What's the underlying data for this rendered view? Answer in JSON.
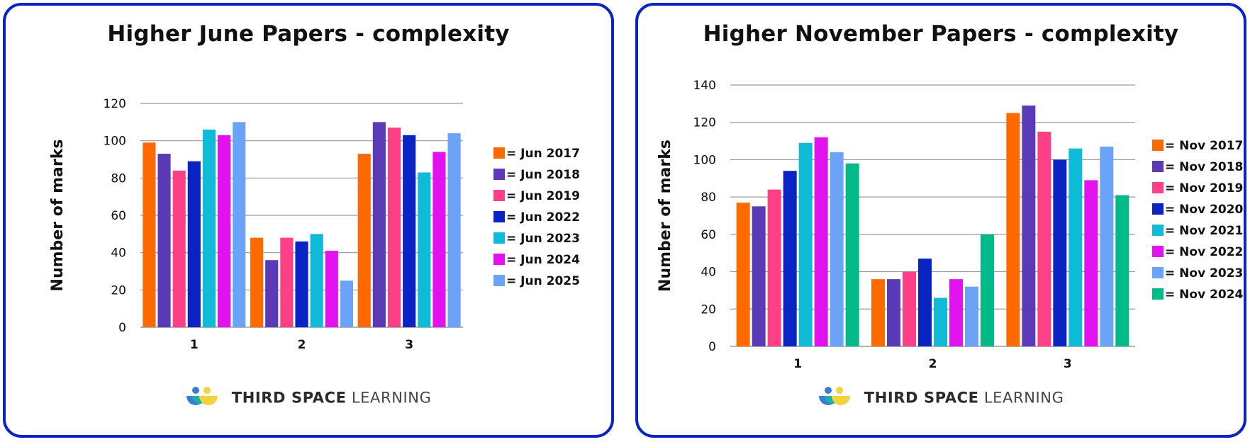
{
  "brand": {
    "bold": "THIRD SPACE",
    "light": "LEARNING"
  },
  "charts": [
    {
      "title": "Higher June Papers - complexity",
      "chart_data": {
        "type": "bar",
        "title": "Higher June Papers - complexity",
        "xlabel": "",
        "ylabel": "Number of marks",
        "ylim": [
          0,
          120
        ],
        "yticks": [
          0,
          20,
          40,
          60,
          80,
          100,
          120
        ],
        "grid": true,
        "legend": "right",
        "categories": [
          "1",
          "2",
          "3"
        ],
        "series": [
          {
            "name": "= Jun 2017",
            "color": "#ff6a00",
            "values": [
              99,
              48,
              93
            ]
          },
          {
            "name": "= Jun 2018",
            "color": "#5b3ab8",
            "values": [
              93,
              36,
              110
            ]
          },
          {
            "name": "= Jun 2019",
            "color": "#ff3f86",
            "values": [
              84,
              48,
              107
            ]
          },
          {
            "name": "= Jun 2022",
            "color": "#0a24c4",
            "values": [
              89,
              46,
              103
            ]
          },
          {
            "name": "= Jun 2023",
            "color": "#0fbbd6",
            "values": [
              106,
              50,
              83
            ]
          },
          {
            "name": "= Jun 2024",
            "color": "#e212ef",
            "values": [
              103,
              41,
              94
            ]
          },
          {
            "name": "= Jun 2025",
            "color": "#6aa3f7",
            "values": [
              110,
              25,
              104
            ]
          }
        ]
      }
    },
    {
      "title": "Higher November Papers - complexity",
      "chart_data": {
        "type": "bar",
        "title": "Higher November Papers - complexity",
        "xlabel": "",
        "ylabel": "Number of marks",
        "ylim": [
          0,
          140
        ],
        "yticks": [
          0,
          20,
          40,
          60,
          80,
          100,
          120,
          140
        ],
        "grid": true,
        "legend": "right",
        "categories": [
          "1",
          "2",
          "3"
        ],
        "series": [
          {
            "name": "= Nov 2017",
            "color": "#ff6a00",
            "values": [
              77,
              36,
              125
            ]
          },
          {
            "name": "= Nov 2018",
            "color": "#5b3ab8",
            "values": [
              75,
              36,
              129
            ]
          },
          {
            "name": "= Nov 2019",
            "color": "#ff3f86",
            "values": [
              84,
              40,
              115
            ]
          },
          {
            "name": "= Nov 2020",
            "color": "#0a24c4",
            "values": [
              94,
              47,
              100
            ]
          },
          {
            "name": "= Nov 2021",
            "color": "#0fbbd6",
            "values": [
              109,
              26,
              106
            ]
          },
          {
            "name": "= Nov 2022",
            "color": "#e212ef",
            "values": [
              112,
              36,
              89
            ]
          },
          {
            "name": "= Nov 2023",
            "color": "#6aa3f7",
            "values": [
              104,
              32,
              107
            ]
          },
          {
            "name": "= Nov 2024",
            "color": "#00bb88",
            "values": [
              98,
              60,
              81
            ]
          }
        ]
      }
    }
  ]
}
